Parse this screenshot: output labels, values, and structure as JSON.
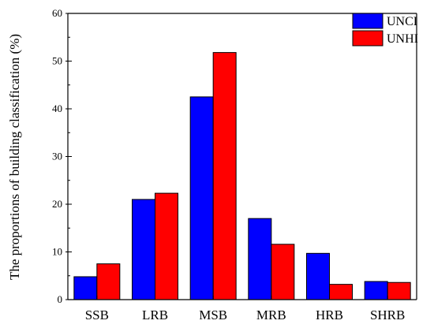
{
  "chart_data": {
    "type": "bar",
    "title": "",
    "xlabel": "",
    "ylabel": "The proportions of building classification (%)",
    "categories": [
      "SSB",
      "LRB",
      "MSB",
      "MRB",
      "HRB",
      "SHRB"
    ],
    "series": [
      {
        "name": "UNCI",
        "color": "#0000ff",
        "values": [
          4.8,
          21.0,
          42.5,
          17.0,
          9.7,
          3.8
        ]
      },
      {
        "name": "UNHI",
        "color": "#ff0000",
        "values": [
          7.5,
          22.3,
          51.8,
          11.6,
          3.2,
          3.6
        ]
      }
    ],
    "ylim": [
      0,
      60
    ],
    "yticks": [
      0,
      10,
      20,
      30,
      40,
      50,
      60
    ],
    "grid": false,
    "legend": "top-right"
  }
}
